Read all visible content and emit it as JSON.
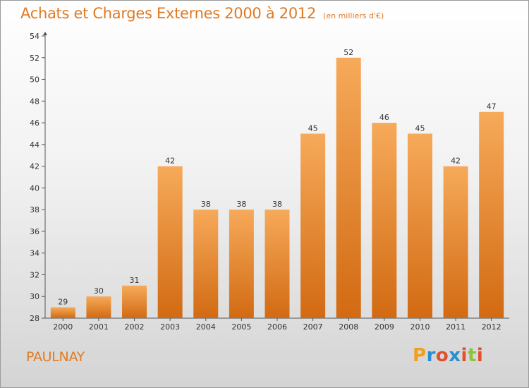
{
  "page": {
    "title": "Achats et Charges Externes 2000 à 2012",
    "title_unit": "(en milliers d'€)",
    "location": "PAULNAY",
    "logo": "Proxiti"
  },
  "colors": {
    "accent": "#e07a22",
    "bar_light": "#f6aa5a",
    "bar_dark": "#d26a12",
    "logo_letters": [
      "#f0a020",
      "#2a8fd0",
      "#e0502a",
      "#2a8fd0",
      "#e0502a",
      "#8cc43a",
      "#e0502a"
    ]
  },
  "chart_data": {
    "type": "bar",
    "title": "Achats et Charges Externes 2000 à 2012",
    "subtitle": "(en milliers d'€)",
    "xlabel": "",
    "ylabel": "",
    "categories": [
      "2000",
      "2001",
      "2002",
      "2003",
      "2004",
      "2005",
      "2006",
      "2007",
      "2008",
      "2009",
      "2010",
      "2011",
      "2012"
    ],
    "values": [
      29,
      30,
      31,
      42,
      38,
      38,
      38,
      45,
      52,
      46,
      45,
      42,
      47
    ],
    "ylim": [
      28,
      54
    ],
    "yticks": [
      28,
      30,
      32,
      34,
      36,
      38,
      40,
      42,
      44,
      46,
      48,
      50,
      52,
      54
    ],
    "grid": false,
    "legend": "none"
  }
}
